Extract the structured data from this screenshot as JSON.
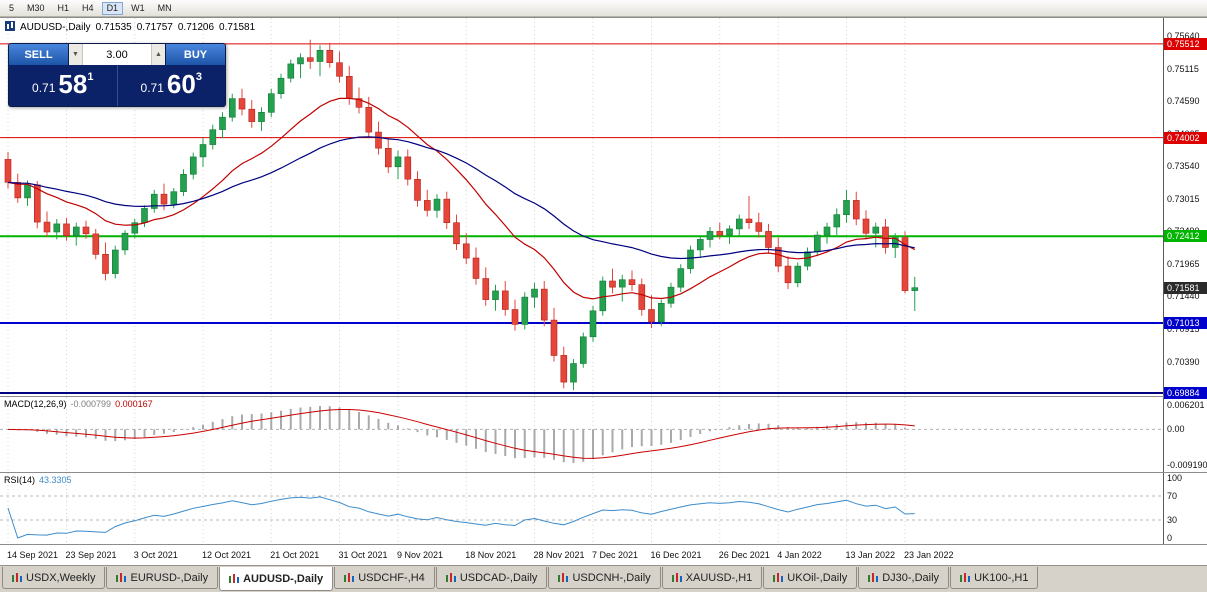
{
  "toolbar": {
    "timeframes": [
      "5",
      "M30",
      "H1",
      "H4",
      "D1",
      "W1",
      "MN"
    ],
    "active_timeframe": "D1"
  },
  "window": {
    "title_symbol": "AUDUSD-,Daily",
    "ohlc": {
      "open": "0.71535",
      "high": "0.71757",
      "low": "0.71206",
      "close": "0.71581"
    }
  },
  "trade_panel": {
    "sell_label": "SELL",
    "buy_label": "BUY",
    "volume": "3.00",
    "volume_down_glyph": "▼",
    "volume_up_glyph": "▲",
    "sell_price_main": "0.71",
    "sell_price_big": "58",
    "sell_price_sup": "1",
    "buy_price_main": "0.71",
    "buy_price_big": "60",
    "buy_price_sup": "3"
  },
  "price_axis": {
    "ticks": [
      "0.75640",
      "0.75115",
      "0.74590",
      "0.74065",
      "0.73540",
      "0.73015",
      "0.72490",
      "0.71965",
      "0.71440",
      "0.70915",
      "0.70390"
    ],
    "level_labels": [
      {
        "text": "0.75512",
        "value": 0.75512,
        "color": "#dd0000"
      },
      {
        "text": "0.74002",
        "value": 0.74002,
        "color": "#dd0000"
      },
      {
        "text": "0.72412",
        "value": 0.72412,
        "color": "#00b400"
      },
      {
        "text": "0.71581",
        "value": 0.71581,
        "color": "#2b2b2b"
      },
      {
        "text": "0.71013",
        "value": 0.71013,
        "color": "#0000cc"
      },
      {
        "text": "0.69884",
        "value": 0.69884,
        "color": "#0000cc"
      }
    ]
  },
  "macd_panel": {
    "name": "MACD(12,26,9)",
    "value_main": "-0.000799",
    "value_signal": "0.000167",
    "scale_top": "0.006201",
    "scale_mid": "0.00",
    "scale_bottom": "-0.009190",
    "bar_color": "#a9a9a9",
    "signal_color": "#cc0000"
  },
  "rsi_panel": {
    "name": "RSI(14)",
    "value": "43.3305",
    "scale_top": "100",
    "scale_high": "70",
    "scale_low": "30",
    "scale_bottom": "0",
    "line_color": "#3c8ccc",
    "level_high": 70,
    "level_low": 30
  },
  "tabs": {
    "items": [
      "USDX,Weekly",
      "EURUSD-,Daily",
      "AUDUSD-,Daily",
      "USDCHF-,H4",
      "USDCAD-,Daily",
      "USDCNH-,Daily",
      "XAUUSD-,H1",
      "UKOil-,Daily",
      "DJ30-,Daily",
      "UK100-,H1"
    ],
    "active_index": 2
  },
  "chart_data": {
    "type": "candlestick",
    "title": "AUDUSD-,Daily",
    "ylim": [
      0.69884,
      0.7564
    ],
    "up_color": "#23a14e",
    "down_color": "#e6453a",
    "x_axis_labels": [
      {
        "index": 0,
        "label": "14 Sep 2021"
      },
      {
        "index": 6,
        "label": "23 Sep 2021"
      },
      {
        "index": 13,
        "label": "3 Oct 2021"
      },
      {
        "index": 20,
        "label": "12 Oct 2021"
      },
      {
        "index": 27,
        "label": "21 Oct 2021"
      },
      {
        "index": 34,
        "label": "31 Oct 2021"
      },
      {
        "index": 40,
        "label": "9 Nov 2021"
      },
      {
        "index": 47,
        "label": "18 Nov 2021"
      },
      {
        "index": 54,
        "label": "28 Nov 2021"
      },
      {
        "index": 60,
        "label": "7 Dec 2021"
      },
      {
        "index": 66,
        "label": "16 Dec 2021"
      },
      {
        "index": 73,
        "label": "26 Dec 2021"
      },
      {
        "index": 79,
        "label": "4 Jan 2022"
      },
      {
        "index": 86,
        "label": "13 Jan 2022"
      },
      {
        "index": 92,
        "label": "23 Jan 2022"
      }
    ],
    "moving_averages": [
      {
        "period": 16,
        "color": "#c00000"
      },
      {
        "period": 40,
        "color": "#000080"
      }
    ],
    "horizontal_levels": [
      {
        "price": 0.75512,
        "color": "#dd0000",
        "width": 1
      },
      {
        "price": 0.74002,
        "color": "#dd0000",
        "width": 1
      },
      {
        "price": 0.72412,
        "color": "#00b400",
        "width": 2
      },
      {
        "price": 0.71013,
        "color": "#0000cc",
        "width": 2
      },
      {
        "price": 0.69884,
        "color": "#000080",
        "width": 2
      }
    ],
    "candles_ohlc": [
      [
        0.7365,
        0.7377,
        0.7318,
        0.7328
      ],
      [
        0.7328,
        0.7342,
        0.7295,
        0.7303
      ],
      [
        0.7303,
        0.7331,
        0.729,
        0.7324
      ],
      [
        0.7324,
        0.733,
        0.7254,
        0.7264
      ],
      [
        0.7264,
        0.7281,
        0.724,
        0.7248
      ],
      [
        0.7248,
        0.7269,
        0.7236,
        0.7261
      ],
      [
        0.7261,
        0.7271,
        0.7234,
        0.7242
      ],
      [
        0.7242,
        0.7263,
        0.7226,
        0.7256
      ],
      [
        0.7256,
        0.7266,
        0.7237,
        0.7245
      ],
      [
        0.7245,
        0.7253,
        0.7204,
        0.7212
      ],
      [
        0.7212,
        0.7231,
        0.717,
        0.7181
      ],
      [
        0.7181,
        0.7226,
        0.7173,
        0.7219
      ],
      [
        0.7219,
        0.7251,
        0.7211,
        0.7246
      ],
      [
        0.7246,
        0.7269,
        0.7238,
        0.7263
      ],
      [
        0.7263,
        0.7291,
        0.7256,
        0.7286
      ],
      [
        0.7286,
        0.7316,
        0.7279,
        0.7309
      ],
      [
        0.7309,
        0.7326,
        0.7283,
        0.7293
      ],
      [
        0.7293,
        0.7319,
        0.7286,
        0.7313
      ],
      [
        0.7313,
        0.7349,
        0.7306,
        0.7341
      ],
      [
        0.7341,
        0.7376,
        0.7333,
        0.7369
      ],
      [
        0.7369,
        0.7399,
        0.7353,
        0.7389
      ],
      [
        0.7389,
        0.7421,
        0.7381,
        0.7413
      ],
      [
        0.7413,
        0.7441,
        0.7399,
        0.7433
      ],
      [
        0.7433,
        0.7471,
        0.7426,
        0.7463
      ],
      [
        0.7463,
        0.7479,
        0.7436,
        0.7446
      ],
      [
        0.7446,
        0.7461,
        0.7416,
        0.7426
      ],
      [
        0.7426,
        0.7449,
        0.7411,
        0.7441
      ],
      [
        0.7441,
        0.7479,
        0.7433,
        0.7471
      ],
      [
        0.7471,
        0.7503,
        0.7463,
        0.7496
      ],
      [
        0.7496,
        0.7526,
        0.7489,
        0.7519
      ],
      [
        0.7519,
        0.7536,
        0.7496,
        0.7529
      ],
      [
        0.7529,
        0.7558,
        0.7511,
        0.7523
      ],
      [
        0.7523,
        0.7549,
        0.7499,
        0.7541
      ],
      [
        0.7541,
        0.7553,
        0.7513,
        0.7521
      ],
      [
        0.7521,
        0.7539,
        0.7489,
        0.7499
      ],
      [
        0.7499,
        0.7516,
        0.7453,
        0.7463
      ],
      [
        0.7463,
        0.7481,
        0.7439,
        0.7449
      ],
      [
        0.7449,
        0.7466,
        0.7399,
        0.7409
      ],
      [
        0.7409,
        0.7426,
        0.7373,
        0.7383
      ],
      [
        0.7383,
        0.7399,
        0.7343,
        0.7353
      ],
      [
        0.7353,
        0.7379,
        0.7333,
        0.7369
      ],
      [
        0.7369,
        0.7381,
        0.7323,
        0.7333
      ],
      [
        0.7333,
        0.7346,
        0.7289,
        0.7299
      ],
      [
        0.7299,
        0.7316,
        0.7273,
        0.7283
      ],
      [
        0.7283,
        0.7309,
        0.7271,
        0.7301
      ],
      [
        0.7301,
        0.7313,
        0.7253,
        0.7263
      ],
      [
        0.7263,
        0.7276,
        0.7219,
        0.7229
      ],
      [
        0.7229,
        0.7246,
        0.7196,
        0.7206
      ],
      [
        0.7206,
        0.7223,
        0.7163,
        0.7173
      ],
      [
        0.7173,
        0.7191,
        0.7129,
        0.7139
      ],
      [
        0.7139,
        0.7163,
        0.7121,
        0.7153
      ],
      [
        0.7153,
        0.7169,
        0.7113,
        0.7123
      ],
      [
        0.7123,
        0.7139,
        0.7089,
        0.7099
      ],
      [
        0.7099,
        0.7151,
        0.7091,
        0.7143
      ],
      [
        0.7143,
        0.7166,
        0.7126,
        0.7156
      ],
      [
        0.7156,
        0.7169,
        0.7096,
        0.7106
      ],
      [
        0.7106,
        0.7126,
        0.7039,
        0.7049
      ],
      [
        0.7049,
        0.7063,
        0.6996,
        0.7006
      ],
      [
        0.7006,
        0.7043,
        0.6993,
        0.7036
      ],
      [
        0.7036,
        0.7086,
        0.7029,
        0.7079
      ],
      [
        0.7079,
        0.7129,
        0.7071,
        0.7121
      ],
      [
        0.7121,
        0.7176,
        0.7113,
        0.7169
      ],
      [
        0.7169,
        0.7189,
        0.7149,
        0.7159
      ],
      [
        0.7159,
        0.7179,
        0.7136,
        0.7171
      ],
      [
        0.7171,
        0.7186,
        0.7153,
        0.7163
      ],
      [
        0.7163,
        0.7173,
        0.7113,
        0.7123
      ],
      [
        0.7123,
        0.7146,
        0.7093,
        0.7103
      ],
      [
        0.7103,
        0.7139,
        0.7096,
        0.7133
      ],
      [
        0.7133,
        0.7166,
        0.7126,
        0.7159
      ],
      [
        0.7159,
        0.7196,
        0.7151,
        0.7189
      ],
      [
        0.7189,
        0.7226,
        0.7181,
        0.7219
      ],
      [
        0.7219,
        0.7243,
        0.7206,
        0.7236
      ],
      [
        0.7236,
        0.7256,
        0.7223,
        0.7249
      ],
      [
        0.7249,
        0.7263,
        0.7236,
        0.7243
      ],
      [
        0.7243,
        0.7259,
        0.7229,
        0.7253
      ],
      [
        0.7253,
        0.7276,
        0.7241,
        0.7269
      ],
      [
        0.7269,
        0.7306,
        0.7253,
        0.7263
      ],
      [
        0.7263,
        0.7279,
        0.7239,
        0.7249
      ],
      [
        0.7249,
        0.7261,
        0.7213,
        0.7223
      ],
      [
        0.7223,
        0.7239,
        0.7183,
        0.7193
      ],
      [
        0.7193,
        0.7209,
        0.7156,
        0.7166
      ],
      [
        0.7166,
        0.7199,
        0.7159,
        0.7193
      ],
      [
        0.7193,
        0.7223,
        0.7186,
        0.7216
      ],
      [
        0.7216,
        0.7249,
        0.7209,
        0.7243
      ],
      [
        0.7243,
        0.7263,
        0.7229,
        0.7256
      ],
      [
        0.7256,
        0.7286,
        0.7243,
        0.7276
      ],
      [
        0.7276,
        0.7316,
        0.7263,
        0.7299
      ],
      [
        0.7299,
        0.7313,
        0.7259,
        0.7269
      ],
      [
        0.7269,
        0.7283,
        0.7236,
        0.7246
      ],
      [
        0.7246,
        0.7263,
        0.7223,
        0.7256
      ],
      [
        0.7256,
        0.7269,
        0.7213,
        0.7223
      ],
      [
        0.7223,
        0.7246,
        0.7206,
        0.7239
      ],
      [
        0.7239,
        0.7249,
        0.7149,
        0.71535
      ],
      [
        0.71535,
        0.71757,
        0.71206,
        0.71581
      ]
    ]
  }
}
